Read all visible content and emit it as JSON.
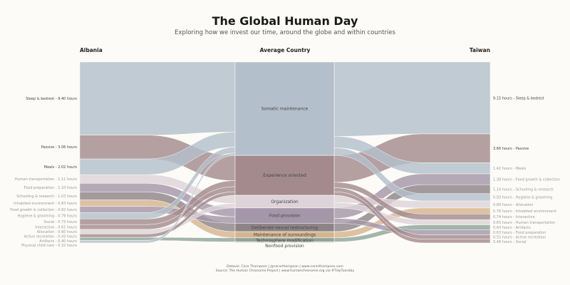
{
  "title": "The Global Human Day",
  "subtitle": "Exploring how we invest our time, around the globe and within countries",
  "columns": {
    "left": "Albania",
    "middle": "Average Country",
    "right": "Taiwan"
  },
  "unit": "hours",
  "groups": [
    {
      "name": "Somatic maintenance",
      "color": "#b3bfcb"
    },
    {
      "name": "Experience oriented",
      "color": "#a48a8d"
    },
    {
      "name": "Organization",
      "color": "#ddd3d8"
    },
    {
      "name": "Food provision",
      "color": "#a596aa"
    },
    {
      "name": "Deliberate neural restructuring",
      "color": "#8e8487"
    },
    {
      "name": "Maintenance of surroundings",
      "color": "#d5b58f"
    },
    {
      "name": "Technosphere modification",
      "color": "#8fa59b"
    },
    {
      "name": "Nonfood provision",
      "color": "#ead6c6"
    }
  ],
  "left": [
    {
      "category": "Sleep & bedrest",
      "hours": "9.40",
      "group": 0
    },
    {
      "category": "Passive",
      "hours": "3.06",
      "group": 1
    },
    {
      "category": "Meals",
      "hours": "2.02",
      "group": 0
    },
    {
      "category": "Human transportation",
      "hours": "1.11",
      "group": 2
    },
    {
      "category": "Food preparation",
      "hours": "1.10",
      "group": 3
    },
    {
      "category": "Schooling & research",
      "hours": "1.03",
      "group": 4
    },
    {
      "category": "Inhabited environment",
      "hours": "0.83",
      "group": 5
    },
    {
      "category": "Food growth & collection",
      "hours": "0.82",
      "group": 3
    },
    {
      "category": "Hygiene & grooming",
      "hours": "0.79",
      "group": 0
    },
    {
      "category": "Social",
      "hours": "0.73",
      "group": 1
    },
    {
      "category": "Interactive",
      "hours": "0.61",
      "group": 1
    },
    {
      "category": "Allocation",
      "hours": "0.60",
      "group": 2
    },
    {
      "category": "Active recreation",
      "hours": "0.43",
      "group": 1
    },
    {
      "category": "Artifacts",
      "hours": "0.40",
      "group": 6
    },
    {
      "category": "Physical child care",
      "hours": "0.32",
      "group": 0
    }
  ],
  "right": [
    {
      "category": "Sleep & bedrest",
      "hours": "9.15",
      "group": 0
    },
    {
      "category": "Passive",
      "hours": "3.66",
      "group": 1
    },
    {
      "category": "Meals",
      "hours": "1.42",
      "group": 0
    },
    {
      "category": "Food growth & collection",
      "hours": "1.38",
      "group": 3
    },
    {
      "category": "Schooling & research",
      "hours": "1.14",
      "group": 4
    },
    {
      "category": "Hygiene & grooming",
      "hours": "0.93",
      "group": 0
    },
    {
      "category": "Allocation",
      "hours": "0.89",
      "group": 2
    },
    {
      "category": "Inhabited environment",
      "hours": "0.76",
      "group": 5
    },
    {
      "category": "Interactive",
      "hours": "0.74",
      "group": 1
    },
    {
      "category": "Human transportation",
      "hours": "0.65",
      "group": 2
    },
    {
      "category": "Artifacts",
      "hours": "0.64",
      "group": 6
    },
    {
      "category": "Food preparation",
      "hours": "0.63",
      "group": 3
    },
    {
      "category": "Active recreation",
      "hours": "0.55",
      "group": 1
    },
    {
      "category": "Social",
      "hours": "0.48",
      "group": 1
    }
  ],
  "footer": {
    "line1": "Dataviz: Cara Thompson | @cararthompson | www.cararthompson.com",
    "line2": "Source: The Human Chronome Project | www.humanchronome.org via #TidyTuesday"
  }
}
